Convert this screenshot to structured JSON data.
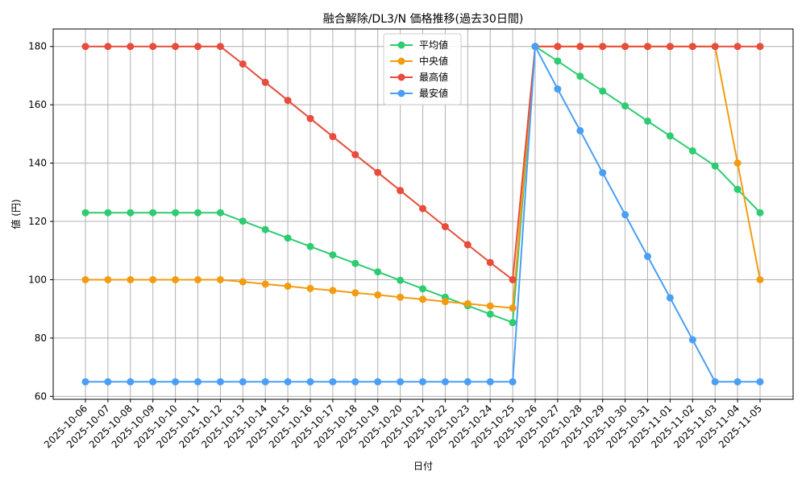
{
  "chart_data": {
    "type": "line",
    "title": "融合解除/DL3/N 価格推移(過去30日間)",
    "xlabel": "日付",
    "ylabel": "値 (円)",
    "ylim": [
      59,
      186
    ],
    "yticks": [
      60,
      80,
      100,
      120,
      140,
      160,
      180
    ],
    "grid": true,
    "legend_position": "top-center",
    "x": [
      "2025-10-06",
      "2025-10-07",
      "2025-10-08",
      "2025-10-09",
      "2025-10-10",
      "2025-10-11",
      "2025-10-12",
      "2025-10-13",
      "2025-10-14",
      "2025-10-15",
      "2025-10-16",
      "2025-10-17",
      "2025-10-18",
      "2025-10-19",
      "2025-10-20",
      "2025-10-21",
      "2025-10-22",
      "2025-10-23",
      "2025-10-24",
      "2025-10-25",
      "2025-10-26",
      "2025-10-27",
      "2025-10-28",
      "2025-10-29",
      "2025-10-30",
      "2025-10-31",
      "2025-11-01",
      "2025-11-02",
      "2025-11-03",
      "2025-11-04",
      "2025-11-05"
    ],
    "series": [
      {
        "name": "平均値",
        "color": "#2ecc71",
        "values": [
          123,
          123,
          123,
          123,
          123,
          123,
          123,
          120.1,
          117.2,
          114.3,
          111.4,
          108.5,
          105.6,
          102.7,
          99.8,
          96.9,
          94,
          91.1,
          88.2,
          85.3,
          180,
          175,
          169.8,
          164.7,
          159.6,
          154.4,
          149.3,
          144.2,
          139,
          131,
          123
        ]
      },
      {
        "name": "中央値",
        "color": "#f39c12",
        "values": [
          100,
          100,
          100,
          100,
          100,
          100,
          100,
          99.3,
          98.5,
          97.8,
          97,
          96.3,
          95.5,
          94.8,
          94,
          93.3,
          92.5,
          91.8,
          91,
          90.3,
          180,
          180,
          180,
          180,
          180,
          180,
          180,
          180,
          180,
          140,
          100
        ]
      },
      {
        "name": "最高値",
        "color": "#e74c3c",
        "values": [
          180,
          180,
          180,
          180,
          180,
          180,
          180,
          174,
          167.7,
          161.5,
          155.3,
          149.1,
          142.9,
          136.8,
          130.6,
          124.4,
          118.2,
          112,
          105.9,
          100,
          180,
          180,
          180,
          180,
          180,
          180,
          180,
          180,
          180,
          180,
          180
        ]
      },
      {
        "name": "最安値",
        "color": "#4a9ff5",
        "values": [
          65,
          65,
          65,
          65,
          65,
          65,
          65,
          65,
          65,
          65,
          65,
          65,
          65,
          65,
          65,
          65,
          65,
          65,
          65,
          65,
          180,
          165.4,
          151.1,
          136.7,
          122.3,
          108,
          93.8,
          79.4,
          65,
          65,
          65
        ]
      }
    ]
  }
}
